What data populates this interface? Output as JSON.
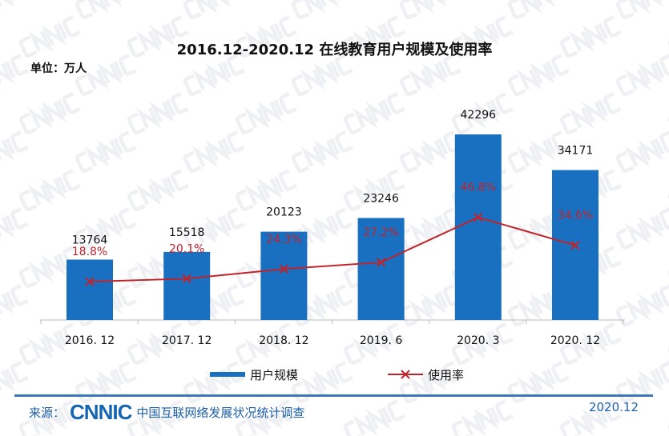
{
  "title": "2016.12-2020.12 在线教育用户规模及使用率",
  "unit": "单位：万人",
  "watermark": "CNNIC",
  "footer": {
    "source_label": "来源：",
    "logo": "CNNIC",
    "source_name": "中国互联网络发展状况统计调查",
    "date": "2020.12"
  },
  "colors": {
    "bar": "#1a70c0",
    "line": "#c0232a",
    "footer": "#1f5fa8"
  },
  "chart_data": {
    "type": "bar+line",
    "title": "2016.12-2020.12 在线教育用户规模及使用率",
    "categories": [
      "2016. 12",
      "2017. 12",
      "2018. 12",
      "2019. 6",
      "2020. 3",
      "2020. 12"
    ],
    "series": [
      {
        "name": "用户规模",
        "type": "bar",
        "unit": "万人",
        "values": [
          13764,
          15518,
          20123,
          23246,
          42296,
          34171
        ],
        "labels": [
          "13764",
          "15518",
          "20123",
          "23246",
          "42296",
          "34171"
        ]
      },
      {
        "name": "使用率",
        "type": "line",
        "unit": "%",
        "values": [
          18.8,
          20.1,
          24.3,
          27.2,
          46.8,
          34.6
        ],
        "labels": [
          "18.8%",
          "20.1%",
          "24.3%",
          "27.2%",
          "46.8%",
          "34.6%"
        ]
      }
    ],
    "legend": "bottom",
    "grid": false
  }
}
